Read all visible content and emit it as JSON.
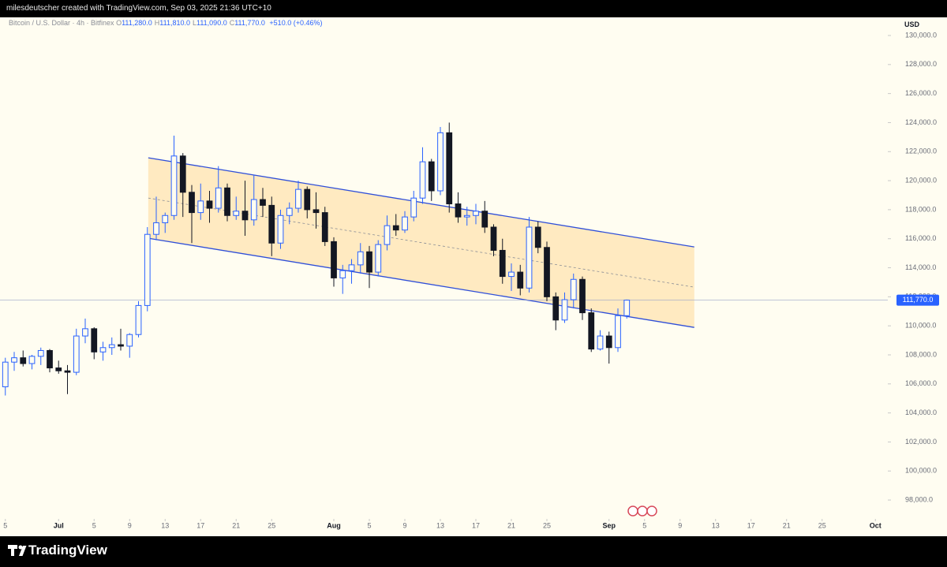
{
  "header": {
    "credit": "milesdeutscher created with TradingView.com, Sep 03, 2025 21:36 UTC+10",
    "brand": "TradingView"
  },
  "chart_data": {
    "type": "candlestick",
    "symbol": "Bitcoin / U.S. Dollar · 4h · Bitfinex",
    "ohlc_legend": [
      {
        "key": "O",
        "value": "111,280.0"
      },
      {
        "key": "H",
        "value": "111,810.0"
      },
      {
        "key": "L",
        "value": "111,090.0"
      },
      {
        "key": "C",
        "value": "111,770.0"
      }
    ],
    "change": "+510.0 (+0.46%)",
    "currency": "USD",
    "up_color": "#2962ff",
    "down_color": "#131722",
    "x": [
      -6,
      -5,
      -4,
      -3,
      -2,
      -1,
      0,
      1,
      2,
      3,
      4,
      5,
      6,
      7,
      8,
      9,
      10,
      11,
      12,
      13,
      14,
      15,
      16,
      17,
      18,
      19,
      20,
      21,
      22,
      23,
      24,
      25,
      26,
      27,
      28,
      29,
      30,
      31,
      32,
      33,
      34,
      35,
      36,
      37,
      38,
      39,
      40,
      41,
      42,
      43,
      44,
      45,
      46,
      47,
      48,
      49,
      50,
      51,
      52,
      53,
      54,
      55,
      56,
      57,
      58,
      59,
      60,
      61,
      62,
      63,
      64
    ],
    "open": [
      105800,
      107500,
      107800,
      107400,
      107900,
      108300,
      107100,
      106900,
      106800,
      109300,
      109800,
      108200,
      108500,
      108700,
      108600,
      109400,
      111400,
      116300,
      117100,
      117600,
      121700,
      119200,
      117800,
      118600,
      118100,
      119500,
      117600,
      117900,
      117300,
      118700,
      118300,
      115700,
      117600,
      118100,
      119400,
      118000,
      117800,
      115800,
      113300,
      113800,
      114200,
      115100,
      113700,
      115600,
      116900,
      116600,
      117500,
      118800,
      121300,
      119300,
      123300,
      118400,
      117500,
      117600,
      117900,
      116800,
      115200,
      113400,
      113700,
      112600,
      116800,
      115400,
      112000,
      110400,
      111800,
      113200,
      110900,
      108400,
      109300,
      108500,
      110700
    ],
    "high": [
      107800,
      108200,
      108300,
      108000,
      108500,
      108400,
      107600,
      107300,
      109800,
      110500,
      109900,
      108900,
      109200,
      109800,
      109500,
      111700,
      116800,
      118900,
      117800,
      123100,
      121900,
      119700,
      119800,
      119300,
      121000,
      119800,
      118900,
      120000,
      120400,
      119500,
      118900,
      118000,
      118500,
      120000,
      119600,
      119200,
      118200,
      116100,
      114200,
      114600,
      115700,
      115500,
      115900,
      117600,
      117700,
      117900,
      119300,
      122300,
      121500,
      123700,
      124000,
      119200,
      118200,
      118400,
      118600,
      117000,
      116000,
      114300,
      114200,
      117500,
      117200,
      115800,
      112300,
      112300,
      113600,
      113400,
      111200,
      109700,
      109600,
      111200,
      111810
    ],
    "low": [
      105200,
      106900,
      107200,
      107000,
      107300,
      106800,
      106700,
      105300,
      106600,
      108800,
      107700,
      107600,
      108000,
      108300,
      107800,
      109200,
      111000,
      115900,
      116400,
      117300,
      117500,
      115700,
      117300,
      117100,
      117800,
      117200,
      117300,
      116200,
      116900,
      117500,
      114800,
      115300,
      117000,
      117800,
      117400,
      116700,
      115500,
      112700,
      112200,
      112900,
      113600,
      112600,
      113400,
      115200,
      116200,
      116400,
      117200,
      118400,
      118600,
      119000,
      117800,
      117100,
      116900,
      117000,
      116400,
      114800,
      112900,
      112400,
      112100,
      112300,
      115000,
      111700,
      109700,
      110200,
      111200,
      110400,
      108200,
      108300,
      107400,
      108200,
      110500
    ],
    "close": [
      107500,
      107800,
      107400,
      107900,
      108300,
      107100,
      106900,
      106800,
      109300,
      109800,
      108200,
      108500,
      108700,
      108600,
      109400,
      111400,
      116300,
      117100,
      117600,
      121700,
      119200,
      117800,
      118600,
      118100,
      119500,
      117600,
      117900,
      117300,
      118700,
      118300,
      115700,
      117600,
      118100,
      119400,
      118000,
      117800,
      115800,
      113300,
      113800,
      114200,
      115100,
      113700,
      115600,
      116900,
      116600,
      117500,
      118800,
      121300,
      119300,
      123300,
      118400,
      117500,
      117600,
      117900,
      116800,
      115200,
      113400,
      113700,
      112600,
      116800,
      115400,
      112000,
      110400,
      111800,
      113200,
      110900,
      108400,
      109300,
      108500,
      110700,
      111770
    ],
    "channel": {
      "x": [
        10.1,
        71.6
      ],
      "upper": [
        121576,
        115435
      ],
      "lower": [
        116033,
        109891
      ],
      "color": "#2f4fd8",
      "fill": "#ffe3b0"
    },
    "last_price": {
      "value": 111770,
      "label": "111,770.0"
    },
    "xlim": [
      -6.6,
      93.4
    ],
    "xticks": [
      {
        "value": -6,
        "label": "5"
      },
      {
        "value": 0,
        "label": "Jul"
      },
      {
        "value": 4,
        "label": "5"
      },
      {
        "value": 8,
        "label": "9"
      },
      {
        "value": 12,
        "label": "13"
      },
      {
        "value": 16,
        "label": "17"
      },
      {
        "value": 20,
        "label": "21"
      },
      {
        "value": 24,
        "label": "25"
      },
      {
        "value": 31,
        "label": "Aug"
      },
      {
        "value": 35,
        "label": "5"
      },
      {
        "value": 39,
        "label": "9"
      },
      {
        "value": 43,
        "label": "13"
      },
      {
        "value": 47,
        "label": "17"
      },
      {
        "value": 51,
        "label": "21"
      },
      {
        "value": 55,
        "label": "25"
      },
      {
        "value": 62,
        "label": "Sep"
      },
      {
        "value": 66,
        "label": "5"
      },
      {
        "value": 70,
        "label": "9"
      },
      {
        "value": 74,
        "label": "13"
      },
      {
        "value": 78,
        "label": "17"
      },
      {
        "value": 82,
        "label": "21"
      },
      {
        "value": 86,
        "label": "25"
      },
      {
        "value": 92,
        "label": "Oct"
      }
    ],
    "ylim": [
      96700,
      131250
    ],
    "yticks": [
      {
        "value": 98000,
        "label": "98,000.0"
      },
      {
        "value": 100000,
        "label": "100,000.0"
      },
      {
        "value": 102000,
        "label": "102,000.0"
      },
      {
        "value": 104000,
        "label": "104,000.0"
      },
      {
        "value": 106000,
        "label": "106,000.0"
      },
      {
        "value": 108000,
        "label": "108,000.0"
      },
      {
        "value": 110000,
        "label": "110,000.0"
      },
      {
        "value": 112000,
        "label": "112,000.0"
      },
      {
        "value": 114000,
        "label": "114,000.0"
      },
      {
        "value": 116000,
        "label": "116,000.0"
      },
      {
        "value": 118000,
        "label": "118,000.0"
      },
      {
        "value": 120000,
        "label": "120,000.0"
      },
      {
        "value": 122000,
        "label": "122,000.0"
      },
      {
        "value": 124000,
        "label": "124,000.0"
      },
      {
        "value": 126000,
        "label": "126,000.0"
      },
      {
        "value": 128000,
        "label": "128,000.0"
      },
      {
        "value": 130000,
        "label": "130,000.0"
      }
    ]
  }
}
